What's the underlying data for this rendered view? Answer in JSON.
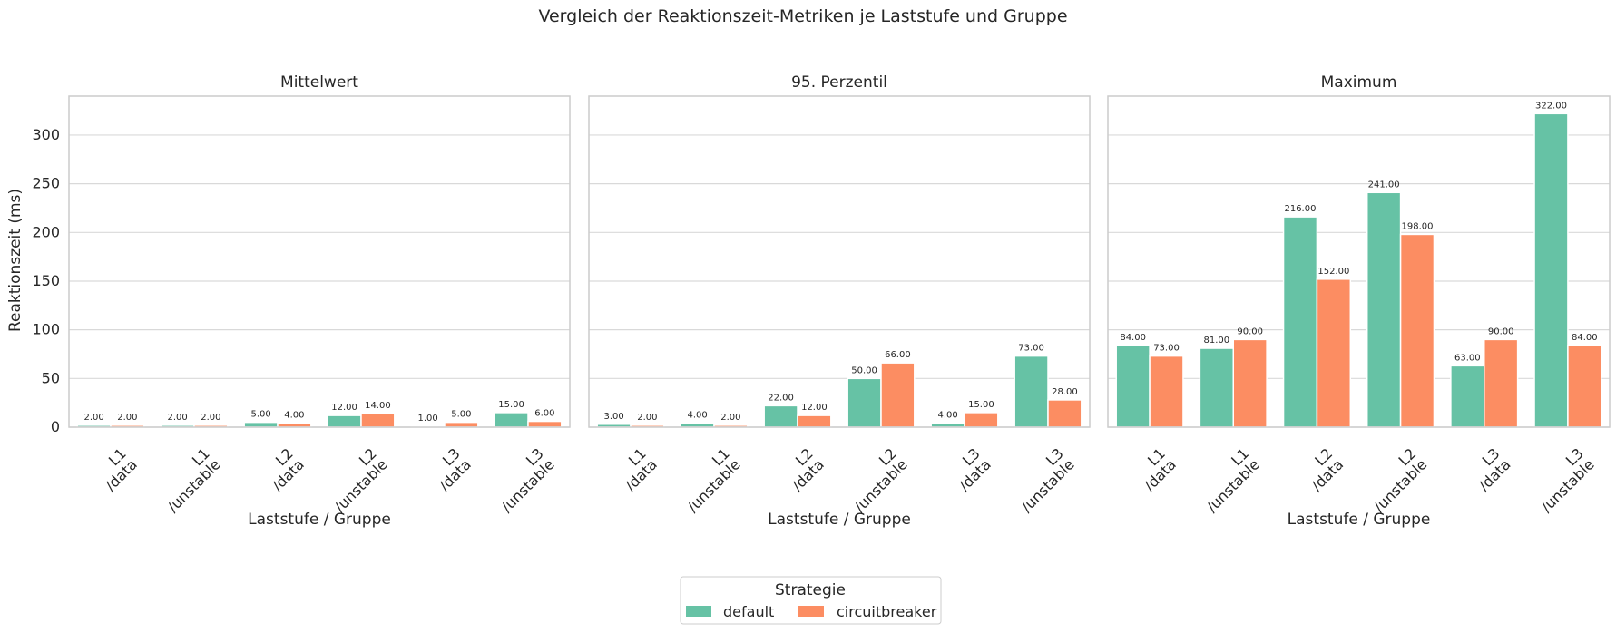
{
  "chart_data": {
    "type": "bar",
    "title": "Vergleich der Reaktionszeit-Metriken je Laststufe und Gruppe",
    "ylabel": "Reaktionszeit (ms)",
    "ylim": [
      0,
      340
    ],
    "yticks": [
      0,
      50,
      100,
      150,
      200,
      250,
      300
    ],
    "grid": true,
    "legend": {
      "title": "Strategie",
      "placement": "bottom-center",
      "entries": [
        "default",
        "circuitbreaker"
      ]
    },
    "colors": {
      "default": "#66c2a5",
      "circuitbreaker": "#fc8d62"
    },
    "categories": [
      [
        "L1",
        "/data"
      ],
      [
        "L1",
        "/unstable"
      ],
      [
        "L2",
        "/data"
      ],
      [
        "L2",
        "/unstable"
      ],
      [
        "L3",
        "/data"
      ],
      [
        "L3",
        "/unstable"
      ]
    ],
    "panels": [
      {
        "title": "Mittelwert",
        "xlabel": "Laststufe / Gruppe",
        "series": [
          {
            "name": "default",
            "values": [
              2,
              2,
              5,
              12,
              1,
              15
            ],
            "labels": [
              "2.00",
              "2.00",
              "5.00",
              "12.00",
              "1.00",
              "15.00"
            ]
          },
          {
            "name": "circuitbreaker",
            "values": [
              2,
              2,
              4,
              14,
              5,
              6
            ],
            "labels": [
              "2.00",
              "2.00",
              "4.00",
              "14.00",
              "5.00",
              "6.00"
            ]
          }
        ]
      },
      {
        "title": "95. Perzentil",
        "xlabel": "Laststufe / Gruppe",
        "series": [
          {
            "name": "default",
            "values": [
              3,
              4,
              22,
              50,
              4,
              73
            ],
            "labels": [
              "3.00",
              "4.00",
              "22.00",
              "50.00",
              "4.00",
              "73.00"
            ]
          },
          {
            "name": "circuitbreaker",
            "values": [
              2,
              2,
              12,
              66,
              15,
              28
            ],
            "labels": [
              "2.00",
              "2.00",
              "12.00",
              "66.00",
              "15.00",
              "28.00"
            ]
          }
        ]
      },
      {
        "title": "Maximum",
        "xlabel": "Laststufe / Gruppe",
        "series": [
          {
            "name": "default",
            "values": [
              84,
              81,
              216,
              241,
              63,
              322
            ],
            "labels": [
              "84.00",
              "81.00",
              "216.00",
              "241.00",
              "63.00",
              "322.00"
            ]
          },
          {
            "name": "circuitbreaker",
            "values": [
              73,
              90,
              152,
              198,
              90,
              84
            ],
            "labels": [
              "73.00",
              "90.00",
              "152.00",
              "198.00",
              "90.00",
              "84.00"
            ]
          }
        ]
      }
    ]
  }
}
